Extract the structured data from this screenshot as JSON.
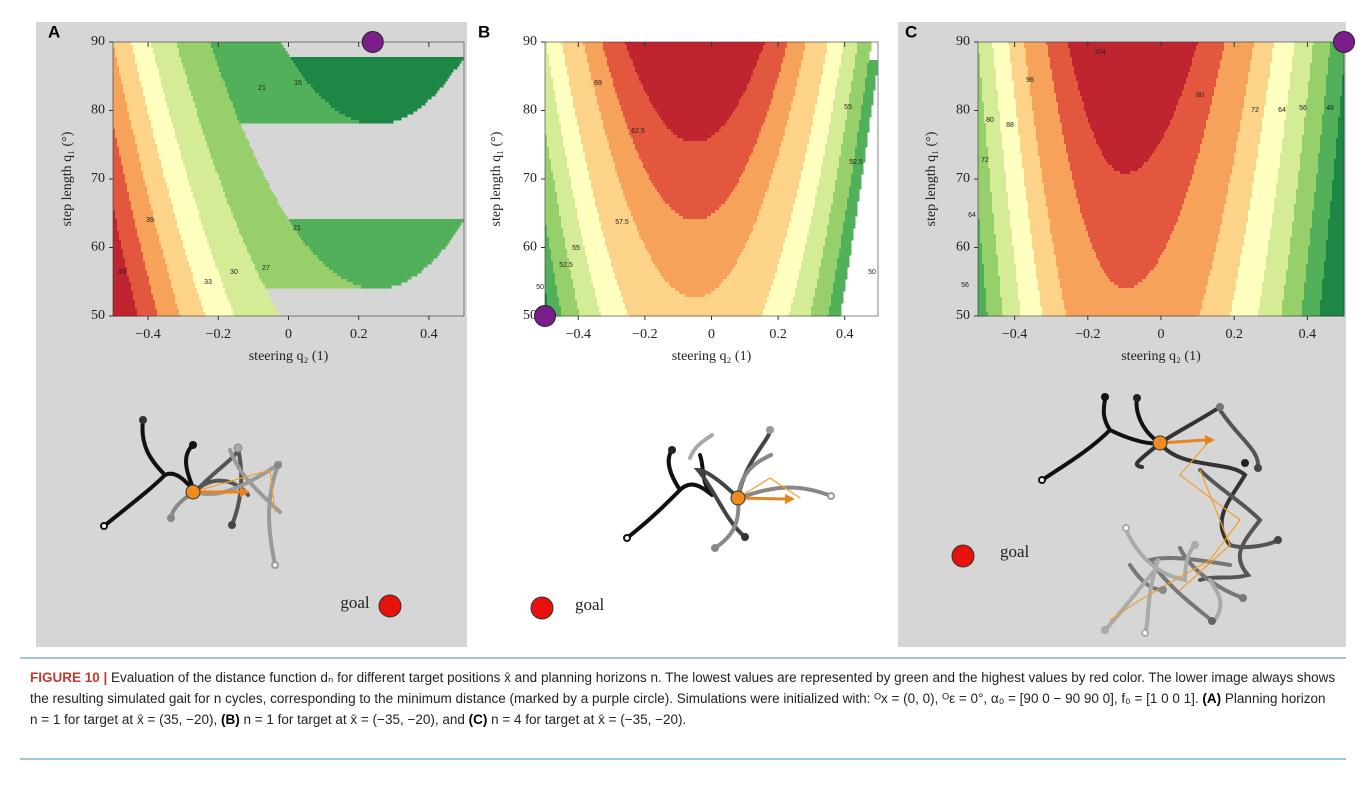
{
  "panels": [
    {
      "label": "A",
      "x_label": "steering q₂ (1)",
      "y_label": "step length q₁ (°)",
      "xlim": [
        -0.5,
        0.5
      ],
      "xticks": [
        {
          "value": -0.4,
          "label": "−0.4"
        },
        {
          "value": -0.2,
          "label": "−0.2"
        },
        0,
        0.2,
        0.4
      ],
      "ylim": [
        50,
        90
      ],
      "yticks": [
        50,
        60,
        70,
        80,
        90
      ],
      "minimum": {
        "x": 0.24,
        "y": 90
      },
      "contour_labels": [
        "15",
        "21",
        "21",
        "27",
        "30",
        "33",
        "39",
        "45"
      ],
      "goal": "goal"
    },
    {
      "label": "B",
      "x_label": "steering q₂ (1)",
      "y_label": "step length q₁ (°)",
      "xlim": [
        -0.5,
        0.5
      ],
      "xticks": [
        {
          "value": -0.4,
          "label": "−0.4"
        },
        {
          "value": -0.2,
          "label": "−0.2"
        },
        0,
        0.2,
        0.4
      ],
      "ylim": [
        50,
        90
      ],
      "yticks": [
        50,
        60,
        70,
        80,
        90
      ],
      "minimum": {
        "x": -0.5,
        "y": 50
      },
      "contour_labels": [
        "69",
        "62.5",
        "57.5",
        "55",
        "52.5",
        "50",
        "55",
        "52.5",
        "50"
      ],
      "goal": "goal"
    },
    {
      "label": "C",
      "x_label": "steering q₂ (1)",
      "y_label": "step length q₁ (°)",
      "xlim": [
        -0.5,
        0.5
      ],
      "xticks": [
        {
          "value": -0.4,
          "label": "−0.4"
        },
        {
          "value": -0.2,
          "label": "−0.2"
        },
        0,
        0.2,
        0.4
      ],
      "ylim": [
        50,
        90
      ],
      "yticks": [
        50,
        60,
        70,
        80,
        90
      ],
      "minimum": {
        "x": 0.5,
        "y": 90
      },
      "contour_labels": [
        "104",
        "96",
        "88",
        "80",
        "72",
        "64",
        "56",
        "80",
        "72",
        "64",
        "56",
        "48"
      ],
      "goal": "goal"
    }
  ],
  "caption": {
    "parts": [
      "FIGURE 10 |",
      " Evaluation of the distance function dₙ for different target positions x̄ and planning horizons n. The lowest values are represented by green and the highest values by red color. The lower image always shows the resulting simulated gait for n cycles, corresponding to the minimum distance (marked by a purple circle). Simulations were initialized with: ᴼx = (0, 0), ᴼε = 0°, α₀ = [90 0 − 90 90 0], f₀ = [1 0 0 1]. ",
      "(A)",
      " Planning horizon n = 1 for target at x̄ = (35, −20), ",
      "(B)",
      " n = 1 for target at x̄ = (−35, −20), and ",
      "(C)",
      " n = 4 for target at x̄ = (−35, −20)."
    ]
  }
}
